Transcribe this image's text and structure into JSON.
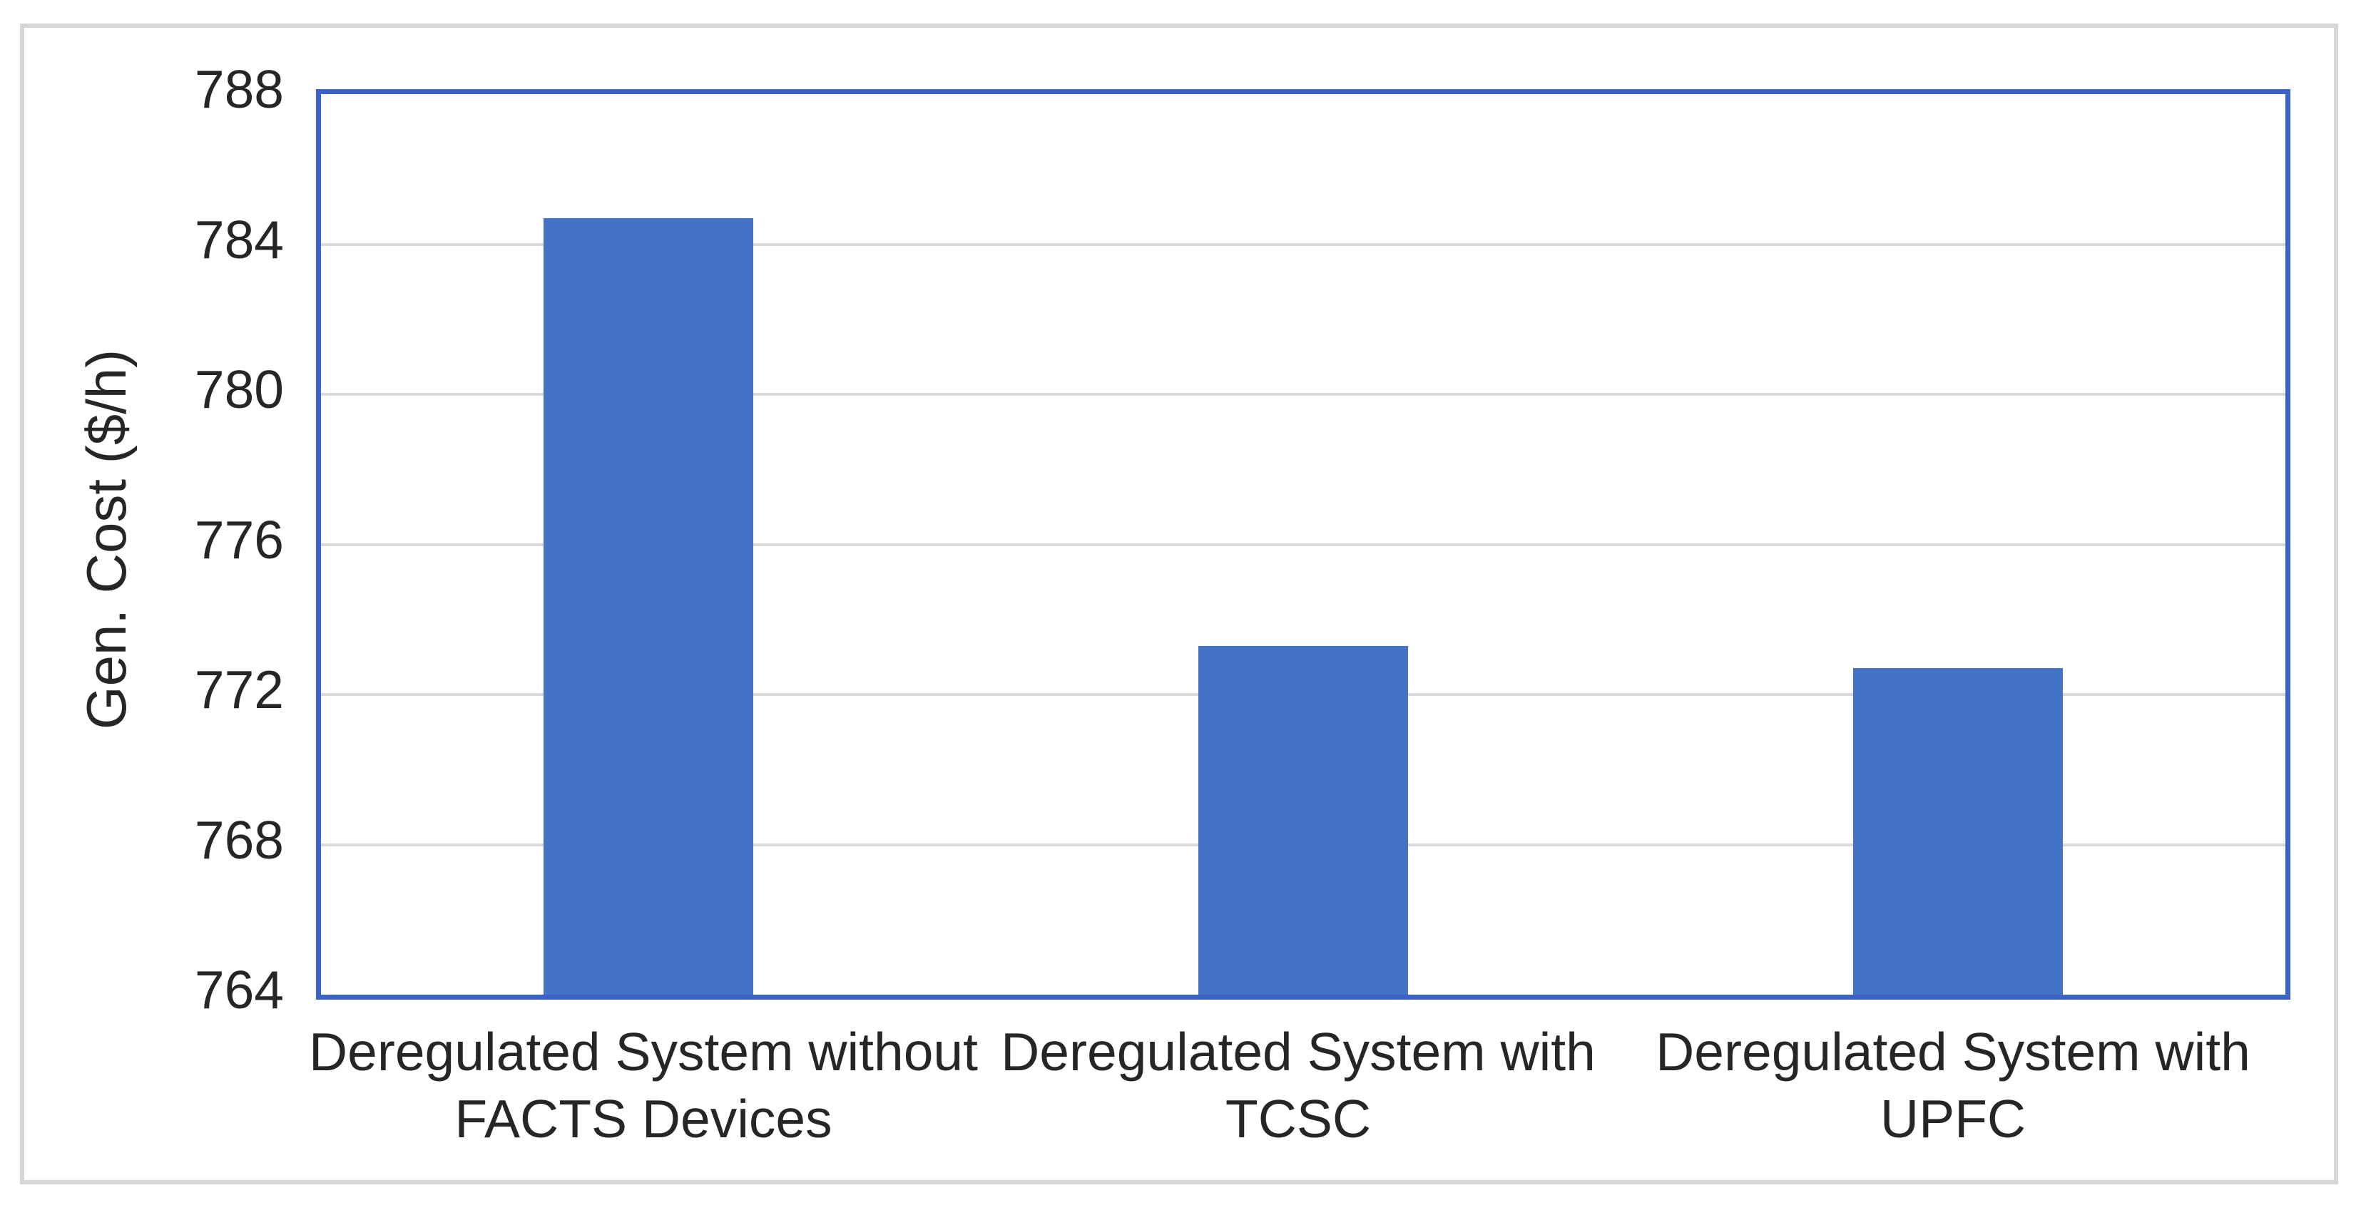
{
  "figure": {
    "background_color": "#ffffff",
    "outer_frame_color": "#d6d6d6",
    "plot_border_color": "#3b63c6",
    "gridline_color": "#d9d9d9",
    "bar_color": "#4472c4",
    "text_color": "#262626"
  },
  "chart_data": {
    "type": "bar",
    "title": "",
    "xlabel": "",
    "ylabel": "Gen. Cost ($/h)",
    "categories": [
      "Deregulated System without FACTS Devices",
      "Deregulated System with TCSC",
      "Deregulated System with UPFC"
    ],
    "category_label_lines": [
      [
        "Deregulated System without",
        "FACTS Devices"
      ],
      [
        "Deregulated System with",
        "TCSC"
      ],
      [
        "Deregulated System with",
        "UPFC"
      ]
    ],
    "values": [
      784.7,
      773.3,
      772.7
    ],
    "ylim": [
      764,
      788
    ],
    "y_ticks": [
      764,
      768,
      772,
      776,
      780,
      784,
      788
    ],
    "grid": "horizontal-gridlines-on",
    "legend": "none"
  }
}
